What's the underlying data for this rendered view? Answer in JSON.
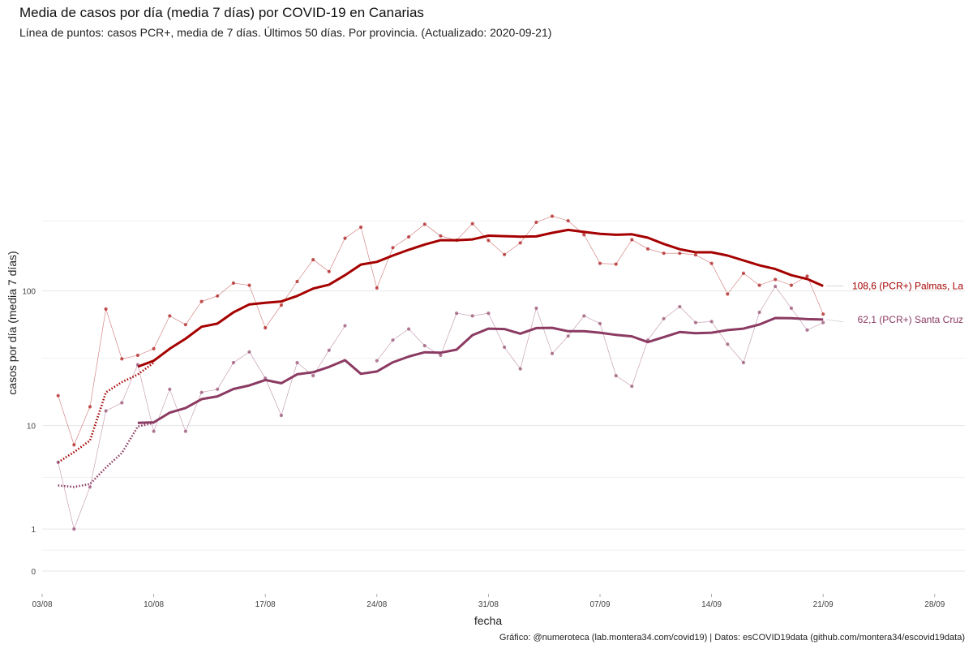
{
  "title": "Media de casos por día (media 7 días) por COVID-19 en Canarias",
  "subtitle": "Línea de puntos: casos PCR+, media de 7 días. Últimos 50 días. Por provincia. (Actualizado: 2020-09-21)",
  "caption": "Gráfico: @numeroteca (lab.montera34.com/covid19) | Datos: esCOVID19data (github.com/montera34/escovid19data)",
  "chart_data": {
    "type": "line",
    "title": "Media de casos por día (media 7 días) por COVID-19 en Canarias",
    "xlabel": "fecha",
    "ylabel": "casos por día (media 7 días)",
    "y_scale": "log1p",
    "grid": true,
    "legend": "direct labels at line ends",
    "x_ticks": [
      "03/08",
      "10/08",
      "17/08",
      "24/08",
      "31/08",
      "07/09",
      "14/09",
      "21/09",
      "28/09"
    ],
    "y_ticks": [
      0,
      1,
      10,
      100
    ],
    "x_range": [
      "2020-08-03",
      "2020-09-29"
    ],
    "series": [
      {
        "color": "#a50000",
        "end_label": "108,6 (PCR+) Palmas, La",
        "daily": [
          [
            "2020-08-04",
            17
          ],
          [
            "2020-08-05",
            7
          ],
          [
            "2020-08-06",
            14
          ],
          [
            "2020-08-07",
            74
          ],
          [
            "2020-08-08",
            32
          ],
          [
            "2020-08-09",
            34
          ],
          [
            "2020-08-10",
            38
          ],
          [
            "2020-08-11",
            66
          ],
          [
            "2020-08-12",
            57
          ],
          [
            "2020-08-13",
            84
          ],
          [
            "2020-08-14",
            92
          ],
          [
            "2020-08-15",
            114
          ],
          [
            "2020-08-16",
            110
          ],
          [
            "2020-08-17",
            54
          ],
          [
            "2020-08-18",
            79
          ],
          [
            "2020-08-19",
            117
          ],
          [
            "2020-08-20",
            168
          ],
          [
            "2020-08-21",
            138
          ],
          [
            "2020-08-22",
            240
          ],
          [
            "2020-08-23",
            288
          ],
          [
            "2020-08-24",
            105
          ],
          [
            "2020-08-25",
            205
          ],
          [
            "2020-08-26",
            245
          ],
          [
            "2020-08-27",
            302
          ],
          [
            "2020-08-28",
            249
          ],
          [
            "2020-08-29",
            232
          ],
          [
            "2020-08-30",
            305
          ],
          [
            "2020-08-31",
            231
          ],
          [
            "2020-09-01",
            183
          ],
          [
            "2020-09-02",
            222
          ],
          [
            "2020-09-03",
            312
          ],
          [
            "2020-09-04",
            345
          ],
          [
            "2020-09-05",
            320
          ],
          [
            "2020-09-06",
            254
          ],
          [
            "2020-09-07",
            158
          ],
          [
            "2020-09-08",
            156
          ],
          [
            "2020-09-09",
            234
          ],
          [
            "2020-09-10",
            201
          ],
          [
            "2020-09-11",
            187
          ],
          [
            "2020-09-12",
            187
          ],
          [
            "2020-09-13",
            182
          ],
          [
            "2020-09-14",
            158
          ],
          [
            "2020-09-15",
            95
          ],
          [
            "2020-09-16",
            134
          ],
          [
            "2020-09-17",
            110
          ],
          [
            "2020-09-18",
            121
          ],
          [
            "2020-09-19",
            110
          ],
          [
            "2020-09-20",
            128
          ],
          [
            "2020-09-21",
            68
          ]
        ],
        "avg_dotted": [
          [
            "2020-08-04",
            5
          ],
          [
            "2020-08-05",
            6.1
          ],
          [
            "2020-08-06",
            7.6
          ],
          [
            "2020-08-07",
            18
          ],
          [
            "2020-08-08",
            21.5
          ],
          [
            "2020-08-09",
            24.5
          ],
          [
            "2020-08-10",
            30
          ]
        ],
        "avg": [
          [
            "2020-08-09",
            28
          ],
          [
            "2020-08-10",
            31
          ],
          [
            "2020-08-11",
            38
          ],
          [
            "2020-08-12",
            45
          ],
          [
            "2020-08-13",
            55
          ],
          [
            "2020-08-14",
            58
          ],
          [
            "2020-08-15",
            70
          ],
          [
            "2020-08-16",
            80
          ],
          [
            "2020-08-17",
            82
          ],
          [
            "2020-08-18",
            84
          ],
          [
            "2020-08-19",
            92
          ],
          [
            "2020-08-20",
            104
          ],
          [
            "2020-08-21",
            111
          ],
          [
            "2020-08-22",
            130
          ],
          [
            "2020-08-23",
            155
          ],
          [
            "2020-08-24",
            162
          ],
          [
            "2020-08-25",
            180
          ],
          [
            "2020-08-26",
            198
          ],
          [
            "2020-08-27",
            216
          ],
          [
            "2020-08-28",
            232
          ],
          [
            "2020-08-29",
            232
          ],
          [
            "2020-08-30",
            235
          ],
          [
            "2020-08-31",
            250
          ],
          [
            "2020-09-01",
            248
          ],
          [
            "2020-09-02",
            246
          ],
          [
            "2020-09-03",
            247
          ],
          [
            "2020-09-04",
            262
          ],
          [
            "2020-09-05",
            275
          ],
          [
            "2020-09-06",
            266
          ],
          [
            "2020-09-07",
            258
          ],
          [
            "2020-09-08",
            254
          ],
          [
            "2020-09-09",
            256
          ],
          [
            "2020-09-10",
            242
          ],
          [
            "2020-09-11",
            218
          ],
          [
            "2020-09-12",
            200
          ],
          [
            "2020-09-13",
            190
          ],
          [
            "2020-09-14",
            190
          ],
          [
            "2020-09-15",
            180
          ],
          [
            "2020-09-16",
            166
          ],
          [
            "2020-09-17",
            153
          ],
          [
            "2020-09-18",
            144
          ],
          [
            "2020-09-19",
            130
          ],
          [
            "2020-09-20",
            122
          ],
          [
            "2020-09-21",
            108.6
          ]
        ]
      },
      {
        "color": "#8b3a62",
        "end_label": "62,1 (PCR+) Santa Cruz",
        "daily": [
          [
            "2020-08-04",
            5
          ],
          [
            "2020-08-05",
            1
          ],
          [
            "2020-08-06",
            3
          ],
          [
            "2020-08-07",
            13
          ],
          [
            "2020-08-08",
            15
          ],
          [
            "2020-08-09",
            29
          ],
          [
            "2020-08-10",
            9
          ],
          [
            "2020-08-11",
            19
          ],
          [
            "2020-08-12",
            9
          ],
          [
            "2020-08-13",
            18
          ],
          [
            "2020-08-14",
            19
          ],
          [
            "2020-08-15",
            30
          ],
          [
            "2020-08-16",
            36
          ],
          [
            "2020-08-17",
            23
          ],
          [
            "2020-08-18",
            12
          ],
          [
            "2020-08-19",
            30
          ],
          [
            "2020-08-20",
            24
          ],
          [
            "2020-08-21",
            37
          ],
          [
            "2020-08-22",
            56
          ],
          [
            "2020-08-24",
            31
          ],
          [
            "2020-08-25",
            44
          ],
          [
            "2020-08-26",
            53
          ],
          [
            "2020-08-27",
            40
          ],
          [
            "2020-08-28",
            34
          ],
          [
            "2020-08-29",
            69
          ],
          [
            "2020-08-30",
            66
          ],
          [
            "2020-08-31",
            69
          ],
          [
            "2020-09-01",
            39
          ],
          [
            "2020-09-02",
            27
          ],
          [
            "2020-09-03",
            75
          ],
          [
            "2020-09-04",
            35
          ],
          [
            "2020-09-05",
            47
          ],
          [
            "2020-09-06",
            66
          ],
          [
            "2020-09-07",
            58
          ],
          [
            "2020-09-08",
            24
          ],
          [
            "2020-09-09",
            20
          ],
          [
            "2020-09-10",
            44
          ],
          [
            "2020-09-11",
            63
          ],
          [
            "2020-09-12",
            77
          ],
          [
            "2020-09-13",
            59
          ],
          [
            "2020-09-14",
            60
          ],
          [
            "2020-09-15",
            41
          ],
          [
            "2020-09-16",
            30
          ],
          [
            "2020-09-17",
            70
          ],
          [
            "2020-09-18",
            108
          ],
          [
            "2020-09-19",
            75
          ],
          [
            "2020-09-20",
            52
          ],
          [
            "2020-09-21",
            59
          ]
        ],
        "avg_dotted": [
          [
            "2020-08-04",
            3.1
          ],
          [
            "2020-08-05",
            3
          ],
          [
            "2020-08-06",
            3.2
          ],
          [
            "2020-08-07",
            4.5
          ],
          [
            "2020-08-08",
            6
          ],
          [
            "2020-08-09",
            9.8
          ],
          [
            "2020-08-10",
            10.5
          ]
        ],
        "avg": [
          [
            "2020-08-09",
            10.5
          ],
          [
            "2020-08-10",
            10.6
          ],
          [
            "2020-08-11",
            12.6
          ],
          [
            "2020-08-12",
            13.7
          ],
          [
            "2020-08-13",
            16
          ],
          [
            "2020-08-14",
            16.8
          ],
          [
            "2020-08-15",
            19.1
          ],
          [
            "2020-08-16",
            20.3
          ],
          [
            "2020-08-17",
            22.3
          ],
          [
            "2020-08-18",
            21.1
          ],
          [
            "2020-08-19",
            24.6
          ],
          [
            "2020-08-20",
            25.5
          ],
          [
            "2020-08-21",
            27.9
          ],
          [
            "2020-08-22",
            31.3
          ],
          [
            "2020-08-23",
            24.8
          ],
          [
            "2020-08-24",
            25.8
          ],
          [
            "2020-08-25",
            30.2
          ],
          [
            "2020-08-26",
            33.3
          ],
          [
            "2020-08-27",
            35.8
          ],
          [
            "2020-08-28",
            35.5
          ],
          [
            "2020-08-29",
            37.4
          ],
          [
            "2020-08-30",
            47.8
          ],
          [
            "2020-08-31",
            53.3
          ],
          [
            "2020-09-01",
            52.9
          ],
          [
            "2020-09-02",
            49
          ],
          [
            "2020-09-03",
            53.8
          ],
          [
            "2020-09-04",
            54
          ],
          [
            "2020-09-05",
            51
          ],
          [
            "2020-09-06",
            51
          ],
          [
            "2020-09-07",
            49.8
          ],
          [
            "2020-09-08",
            48
          ],
          [
            "2020-09-09",
            46.8
          ],
          [
            "2020-09-10",
            42.5
          ],
          [
            "2020-09-11",
            46.2
          ],
          [
            "2020-09-12",
            50.3
          ],
          [
            "2020-09-13",
            49.4
          ],
          [
            "2020-09-14",
            49.8
          ],
          [
            "2020-09-15",
            52
          ],
          [
            "2020-09-16",
            53.3
          ],
          [
            "2020-09-17",
            57.1
          ],
          [
            "2020-09-18",
            63.7
          ],
          [
            "2020-09-19",
            63.4
          ],
          [
            "2020-09-20",
            62.5
          ],
          [
            "2020-09-21",
            62.1
          ]
        ]
      }
    ]
  }
}
